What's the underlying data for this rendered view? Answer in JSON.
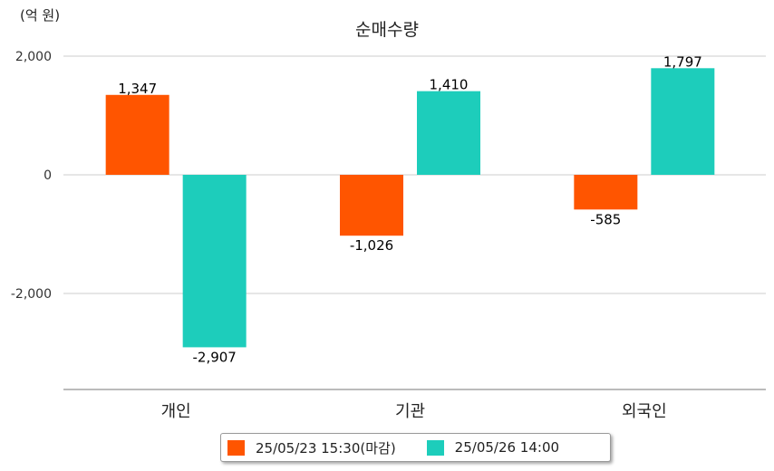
{
  "chart_data": {
    "type": "bar",
    "title": "순매수량",
    "unit_label": "(억 원)",
    "categories": [
      "개인",
      "기관",
      "외국인"
    ],
    "series": [
      {
        "name": "25/05/23 15:30(마감)",
        "color": "#ff5500",
        "values": [
          1347,
          -1026,
          -585
        ],
        "labels": [
          "1,347",
          "-1,026",
          "-585"
        ]
      },
      {
        "name": "25/05/26 14:00",
        "color": "#1dcdbb",
        "values": [
          -2907,
          1410,
          1797
        ],
        "labels": [
          "-2,907",
          "1,410",
          "1,797"
        ]
      }
    ],
    "yticks": [
      {
        "value": 2000,
        "label": "2,000"
      },
      {
        "value": 0,
        "label": "0"
      },
      {
        "value": -2000,
        "label": "-2,000"
      }
    ],
    "ylim": [
      -3600,
      2000
    ],
    "grid": true,
    "legend": "bottom"
  }
}
